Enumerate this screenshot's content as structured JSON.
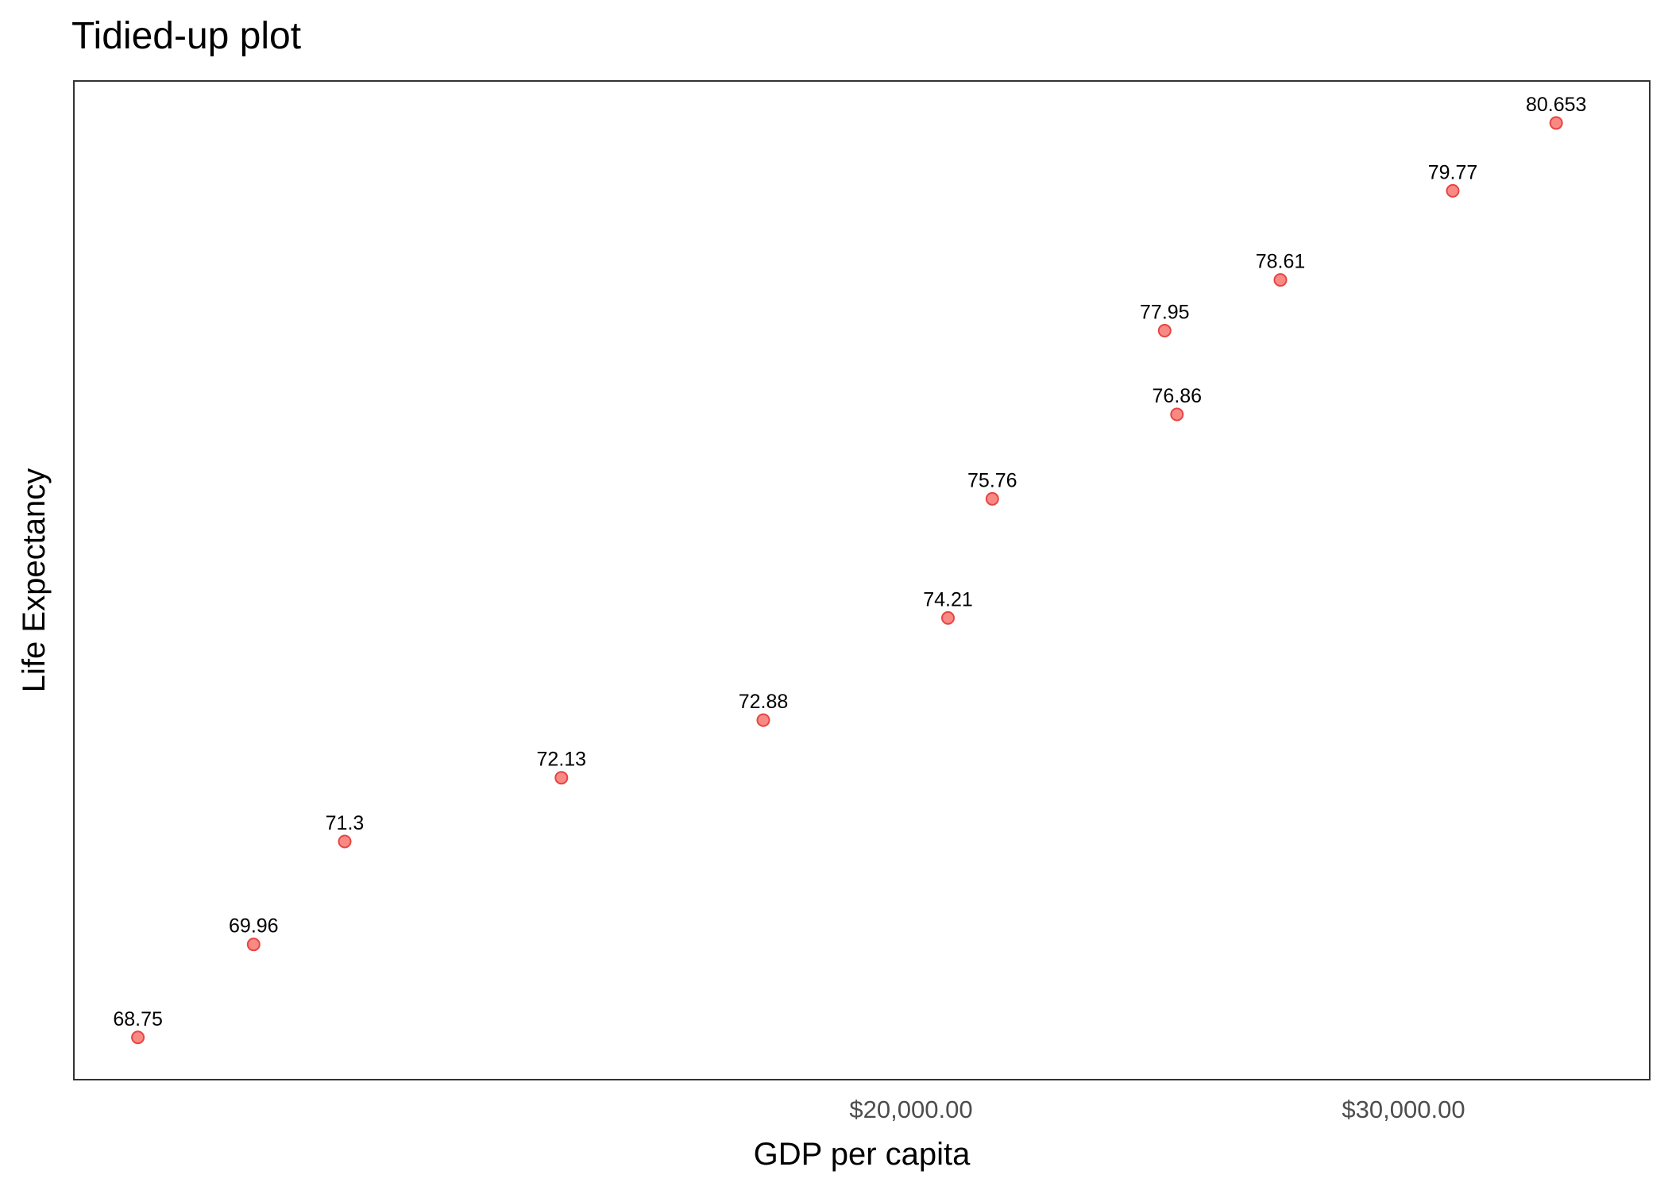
{
  "chart_data": {
    "type": "scatter",
    "title": "Tidied-up plot",
    "xlabel": "GDP per capita",
    "ylabel": "Life Expectancy",
    "x_ticks": [
      {
        "value": 20000,
        "label": "$20,000.00"
      },
      {
        "value": 30000,
        "label": "$30,000.00"
      }
    ],
    "xlim": [
      3000,
      35000
    ],
    "ylim": [
      68.2,
      81.2
    ],
    "grid": false,
    "point_color": "#F8766D",
    "point_stroke": "#e64545",
    "points": [
      {
        "x": 4300,
        "y": 68.75,
        "label": "68.75"
      },
      {
        "x": 6650,
        "y": 69.96,
        "label": "69.96"
      },
      {
        "x": 8500,
        "y": 71.3,
        "label": "71.3"
      },
      {
        "x": 12900,
        "y": 72.13,
        "label": "72.13"
      },
      {
        "x": 17000,
        "y": 72.88,
        "label": "72.88"
      },
      {
        "x": 20750,
        "y": 74.21,
        "label": "74.21"
      },
      {
        "x": 21650,
        "y": 75.76,
        "label": "75.76"
      },
      {
        "x": 25400,
        "y": 76.86,
        "label": "76.86"
      },
      {
        "x": 25150,
        "y": 77.95,
        "label": "77.95"
      },
      {
        "x": 27500,
        "y": 78.61,
        "label": "78.61"
      },
      {
        "x": 31000,
        "y": 79.77,
        "label": "79.77"
      },
      {
        "x": 33100,
        "y": 80.653,
        "label": "80.653"
      }
    ]
  }
}
